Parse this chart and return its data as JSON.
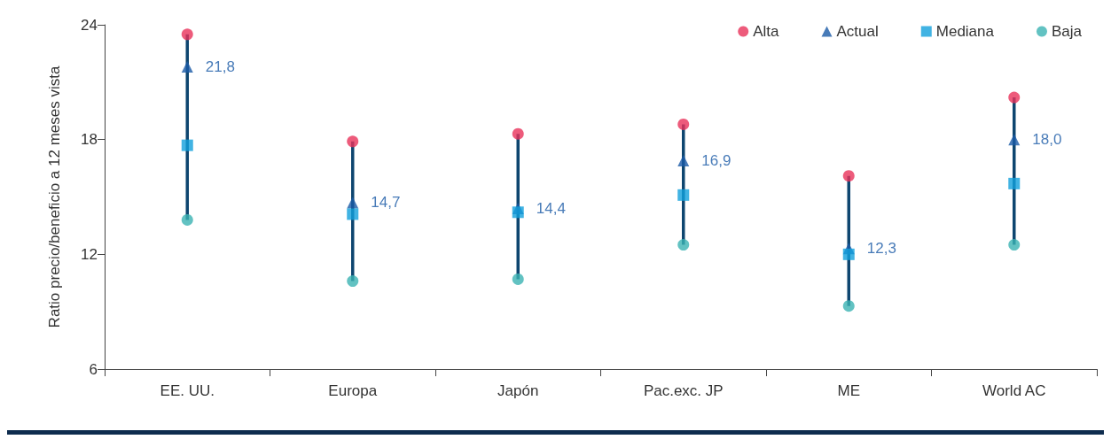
{
  "chart_data": {
    "type": "scatter",
    "ylabel": "Ratio precio/beneficio a 12 meses vista",
    "categories": [
      "EE. UU.",
      "Europa",
      "Japón",
      "Pac.exc. JP",
      "ME",
      "World AC"
    ],
    "ylim": [
      6,
      24
    ],
    "yticks": [
      6,
      12,
      18,
      24
    ],
    "grid": false,
    "legend": "top right",
    "series": [
      {
        "name": "Alta",
        "color": "#e8325a",
        "marker": "circle",
        "values": [
          23.5,
          17.9,
          18.3,
          18.8,
          16.1,
          20.2
        ]
      },
      {
        "name": "Actual",
        "color": "#1a5aa6",
        "marker": "triangle",
        "values": [
          21.8,
          14.7,
          14.4,
          16.9,
          12.3,
          18.0
        ],
        "value_labels": [
          "21,8",
          "14,7",
          "14,4",
          "16,9",
          "12,3",
          "18,0"
        ]
      },
      {
        "name": "Mediana",
        "color": "#12a0dc",
        "marker": "square",
        "values": [
          17.7,
          14.1,
          14.2,
          15.1,
          12.0,
          15.7
        ]
      },
      {
        "name": "Baja",
        "color": "#3bb3b3",
        "marker": "circle",
        "values": [
          13.8,
          10.6,
          10.7,
          12.5,
          9.3,
          12.5
        ]
      }
    ]
  }
}
